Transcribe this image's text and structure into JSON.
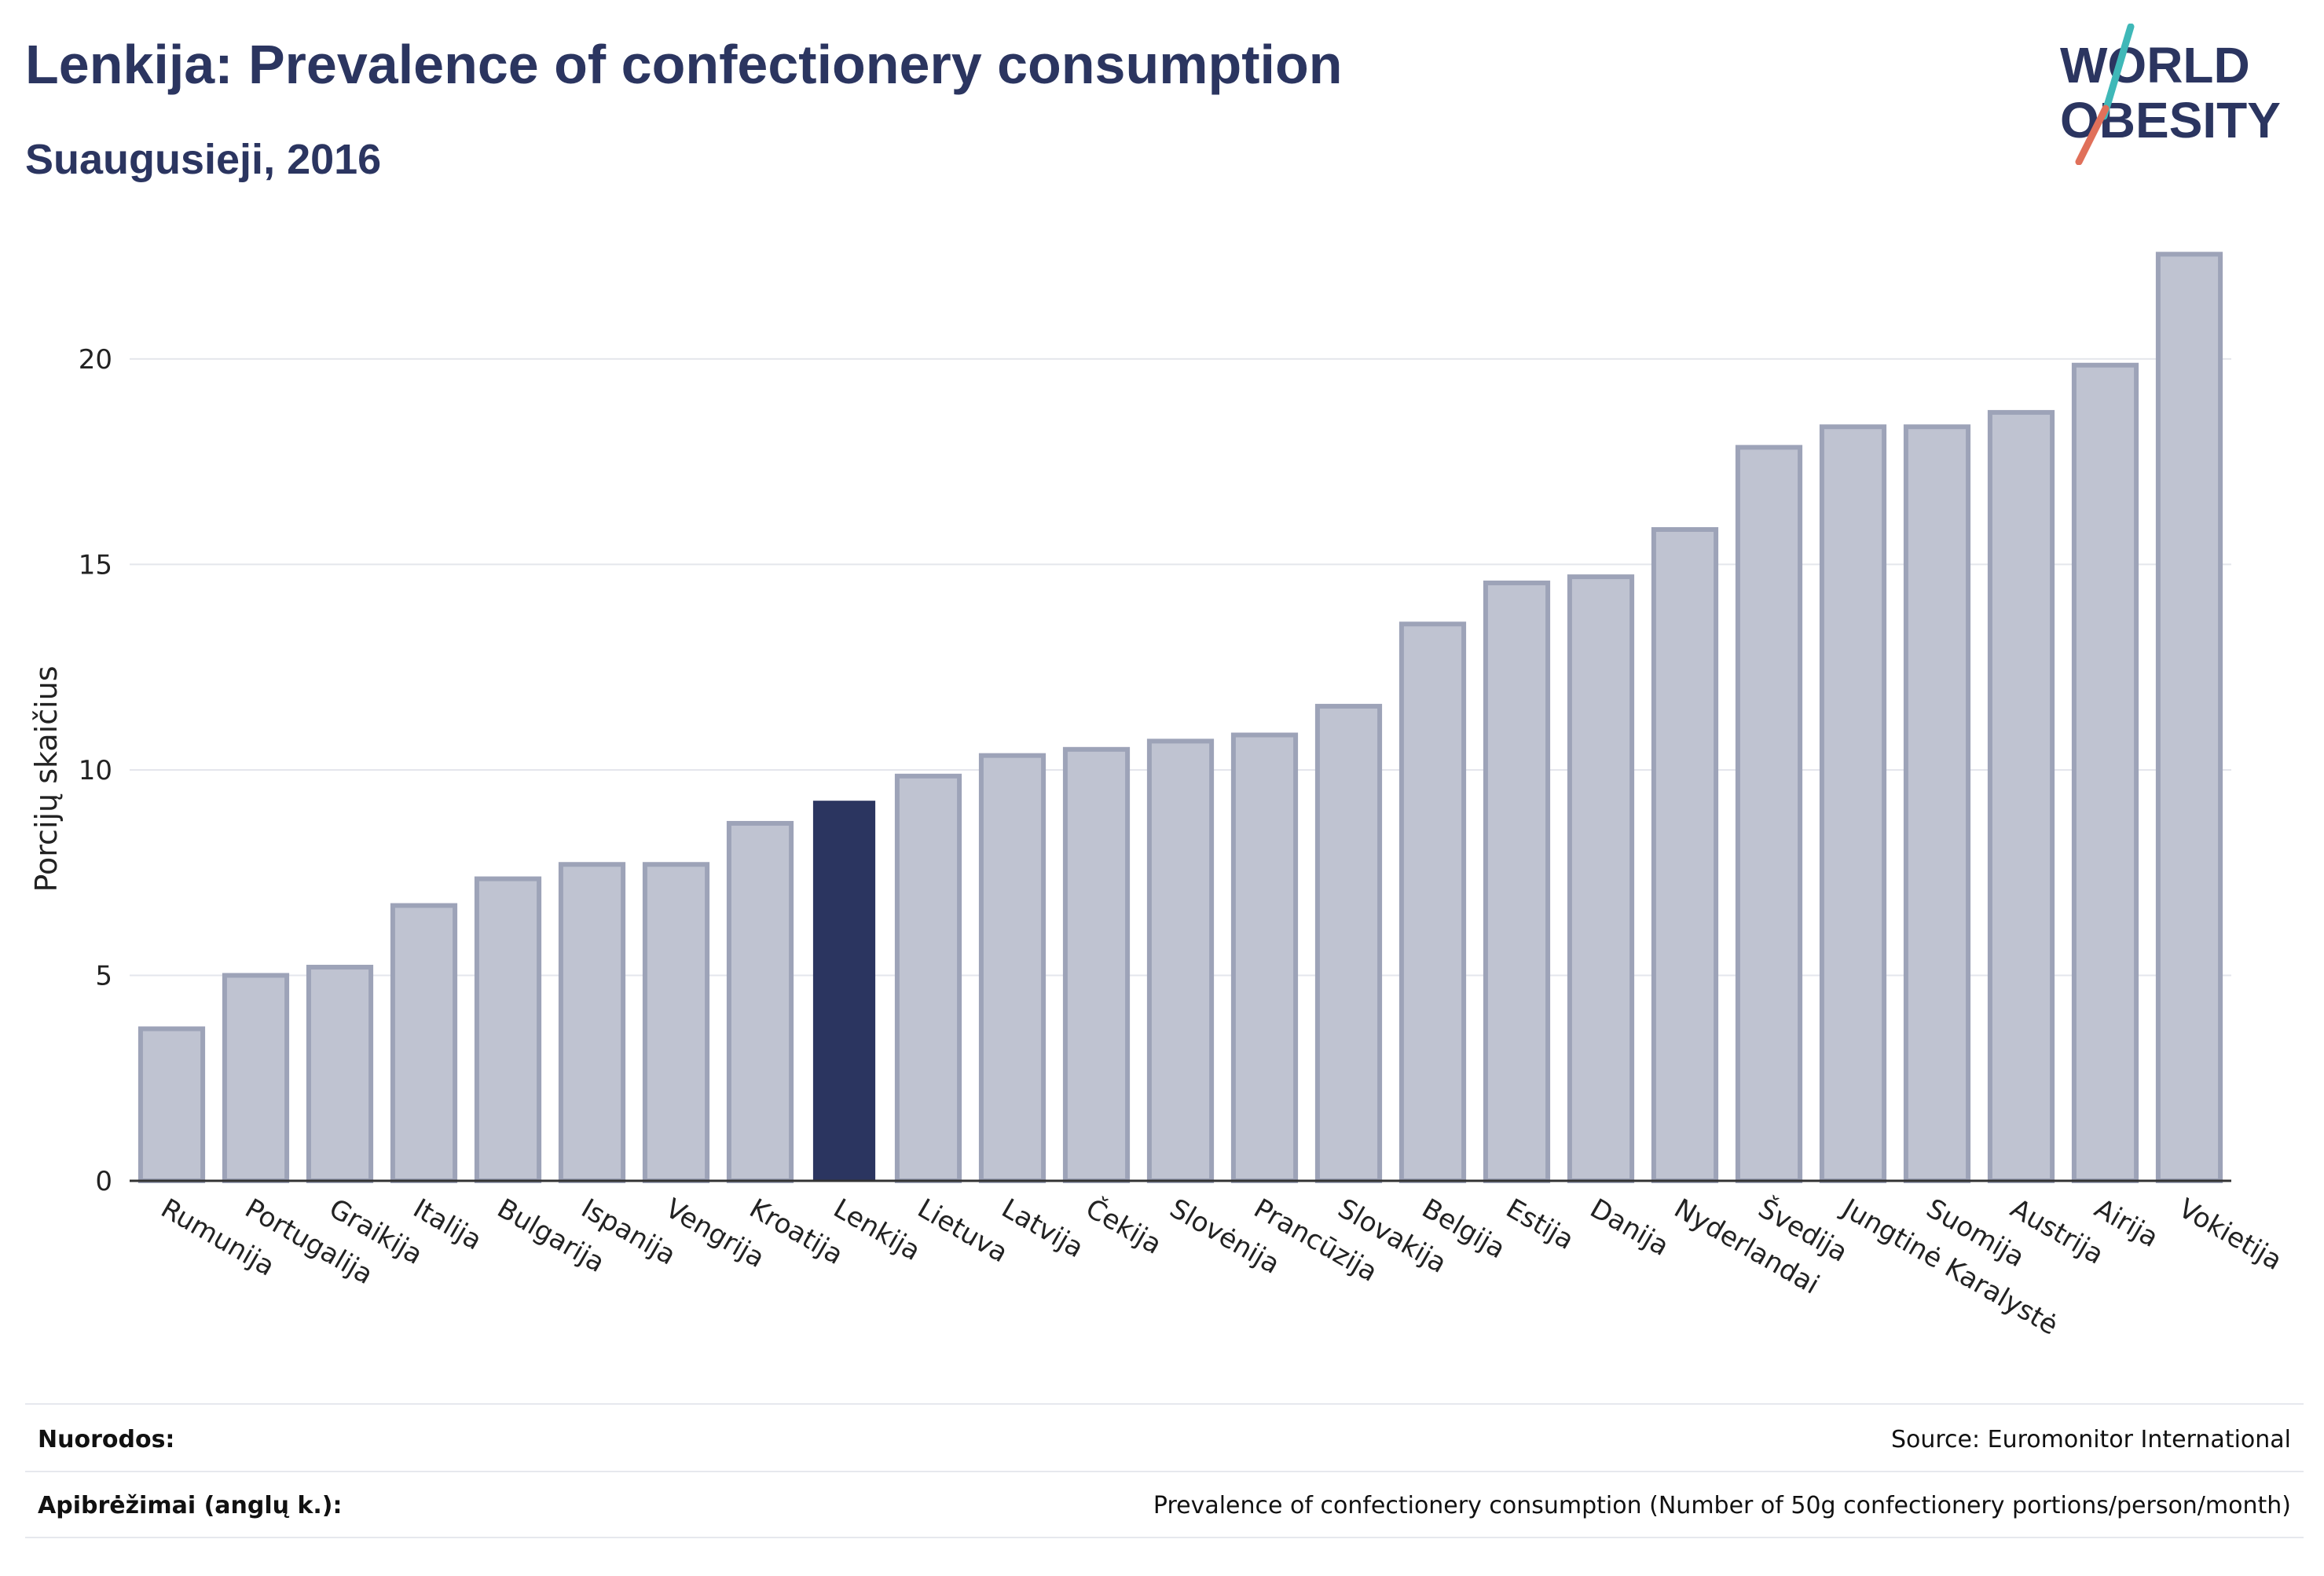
{
  "header": {
    "title": "Lenkija: Prevalence of confectionery consumption",
    "subtitle": "Suaugusieji, 2016"
  },
  "logo": {
    "line1": "WORLD",
    "line2": "OBESITY",
    "accent_teal": "#3fb8b8",
    "accent_red": "#e0705a"
  },
  "colors": {
    "highlight": "#2b3560",
    "bar_fill": "#bfc3d1",
    "bar_stroke": "#9da3b8",
    "text": "#2b3560"
  },
  "chart_data": {
    "type": "bar",
    "title": "Lenkija: Prevalence of confectionery consumption",
    "subtitle": "Suaugusieji, 2016",
    "xlabel": "",
    "ylabel": "Porcijų skaičius",
    "ylim": [
      0,
      23
    ],
    "yticks": [
      0,
      5,
      10,
      15,
      20
    ],
    "grid": true,
    "highlight": "Lenkija",
    "categories": [
      "Rumunija",
      "Portugalija",
      "Graikija",
      "Italija",
      "Bulgarija",
      "Ispanija",
      "Vengrija",
      "Kroatija",
      "Lenkija",
      "Lietuva",
      "Latvija",
      "Čekija",
      "Slovėnija",
      "Prancūzija",
      "Slovakija",
      "Belgija",
      "Estija",
      "Danija",
      "Nyderlandai",
      "Švedija",
      "Jungtinė Karalystė",
      "Suomija",
      "Austrija",
      "Airija",
      "Vokietija"
    ],
    "values": [
      3.7,
      5.0,
      5.2,
      6.7,
      7.35,
      7.7,
      7.7,
      8.7,
      9.25,
      9.85,
      10.35,
      10.5,
      10.7,
      10.85,
      11.55,
      13.55,
      14.55,
      14.7,
      15.85,
      17.85,
      18.35,
      18.35,
      18.7,
      19.85,
      22.55
    ]
  },
  "footer": {
    "references_label": "Nuorodos:",
    "references_value": "Source: Euromonitor International",
    "definitions_label": "Apibrėžimai (anglų k.):",
    "definitions_value": "Prevalence of confectionery consumption (Number of 50g confectionery portions/person/month)"
  }
}
